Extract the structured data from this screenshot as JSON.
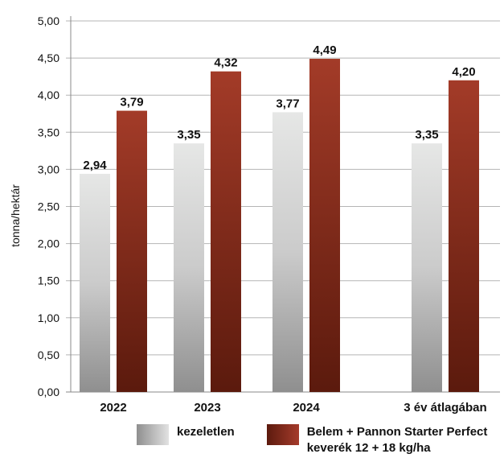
{
  "chart_data": {
    "type": "bar",
    "categories": [
      "2022",
      "2023",
      "2024",
      "3 év átlagában"
    ],
    "series": [
      {
        "name": "kezeletlen",
        "values": [
          2.94,
          3.35,
          3.77,
          3.35
        ],
        "labels": [
          "2,94",
          "3,35",
          "3,77",
          "3,35"
        ]
      },
      {
        "name": "Belem + Pannon Starter Perfect keverék 12 + 18 kg/ha",
        "values": [
          3.79,
          4.32,
          4.49,
          4.2
        ],
        "labels": [
          "3,79",
          "4,32",
          "4,49",
          "4,20"
        ]
      }
    ],
    "ylabel": "tonna/hektár",
    "ylim": [
      0,
      5
    ],
    "yticks": [
      "0,00",
      "0,50",
      "1,00",
      "1,50",
      "2,00",
      "2,50",
      "3,00",
      "3,50",
      "4,00",
      "4,50",
      "5,00"
    ],
    "ytick_values": [
      0,
      0.5,
      1,
      1.5,
      2,
      2.5,
      3,
      3.5,
      4,
      4.5,
      5
    ],
    "grid": true,
    "legend_position": "bottom",
    "colors": {
      "kezeletlen": "#c8c8c8",
      "treated": "#8b2a1c"
    }
  },
  "legend": {
    "item1": "kezeletlen",
    "item2": "Belem + Pannon Starter Perfect\nkeverék 12 + 18 kg/ha"
  }
}
